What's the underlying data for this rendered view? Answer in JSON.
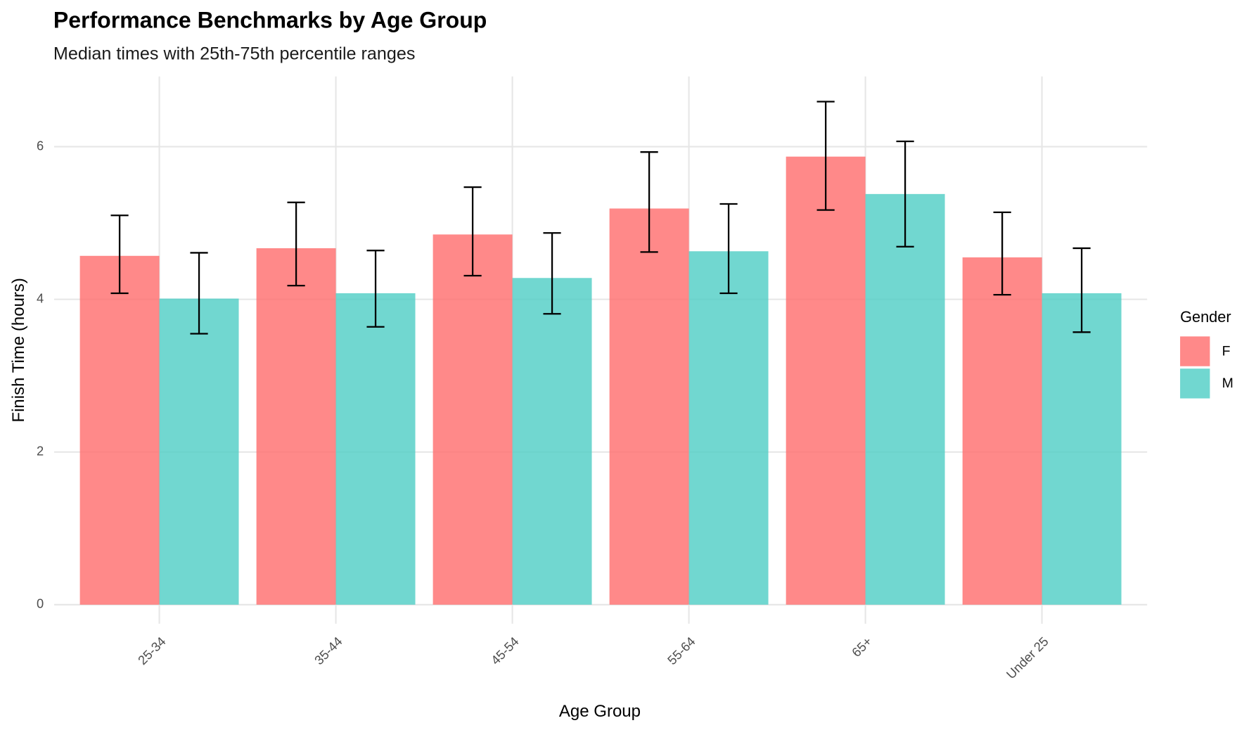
{
  "chart_data": {
    "type": "bar",
    "title": "Performance Benchmarks by Age Group",
    "subtitle": "Median times with 25th-75th percentile ranges",
    "x_label": "Age Group",
    "y_label": "Finish Time (hours)",
    "legend_title": "Gender",
    "legend_position": "right",
    "categories": [
      "25-34",
      "35-44",
      "45-54",
      "55-64",
      "65+",
      "Under 25"
    ],
    "series": [
      {
        "name": "F",
        "color": "#FF6B6B",
        "values": [
          4.57,
          4.67,
          4.85,
          5.19,
          5.87,
          4.55
        ],
        "lower": [
          4.08,
          4.18,
          4.31,
          4.62,
          5.17,
          4.06
        ],
        "upper": [
          5.1,
          5.27,
          5.47,
          5.93,
          6.59,
          5.14
        ]
      },
      {
        "name": "M",
        "color": "#4ECDC4",
        "values": [
          4.01,
          4.08,
          4.28,
          4.63,
          5.38,
          4.08
        ],
        "lower": [
          3.55,
          3.64,
          3.81,
          4.08,
          4.69,
          3.57
        ],
        "upper": [
          4.61,
          4.64,
          4.87,
          5.25,
          6.07,
          4.67
        ]
      }
    ],
    "bar_opacity": 0.8,
    "ylim": [
      -0.25,
      6.92
    ],
    "yticks": [
      0,
      2,
      4,
      6
    ],
    "grid": true
  }
}
